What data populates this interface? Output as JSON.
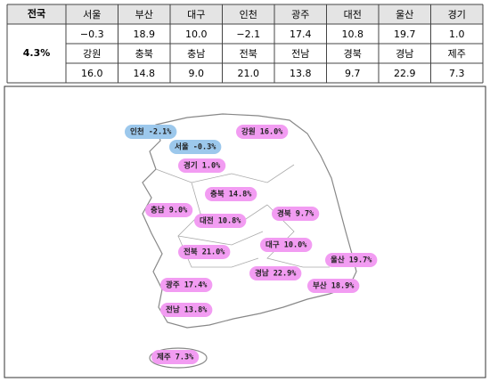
{
  "table": {
    "corner": "전국",
    "total": "4.3%",
    "rows": [
      [
        "서울",
        "부산",
        "대구",
        "인천",
        "광주",
        "대전",
        "울산",
        "경기"
      ],
      [
        "−0.3",
        "18.9",
        "10.0",
        "−2.1",
        "17.4",
        "10.8",
        "19.7",
        "1.0"
      ],
      [
        "강원",
        "충북",
        "충남",
        "전북",
        "전남",
        "경북",
        "경남",
        "제주"
      ],
      [
        "16.0",
        "14.8",
        "9.0",
        "21.0",
        "13.8",
        "9.7",
        "22.9",
        "7.3"
      ]
    ]
  },
  "map": {
    "labels": [
      "인천 -2.1%",
      "서울 -0.3%",
      "강원 16.0%",
      "경기 1.0%",
      "충북 14.8%",
      "충남 9.0%",
      "대전 10.8%",
      "경북 9.7%",
      "대구 10.0%",
      "전북 21.0%",
      "울산 19.7%",
      "경남 22.9%",
      "부산 18.9%",
      "광주 17.4%",
      "전남 13.8%",
      "제주 7.3%"
    ]
  }
}
